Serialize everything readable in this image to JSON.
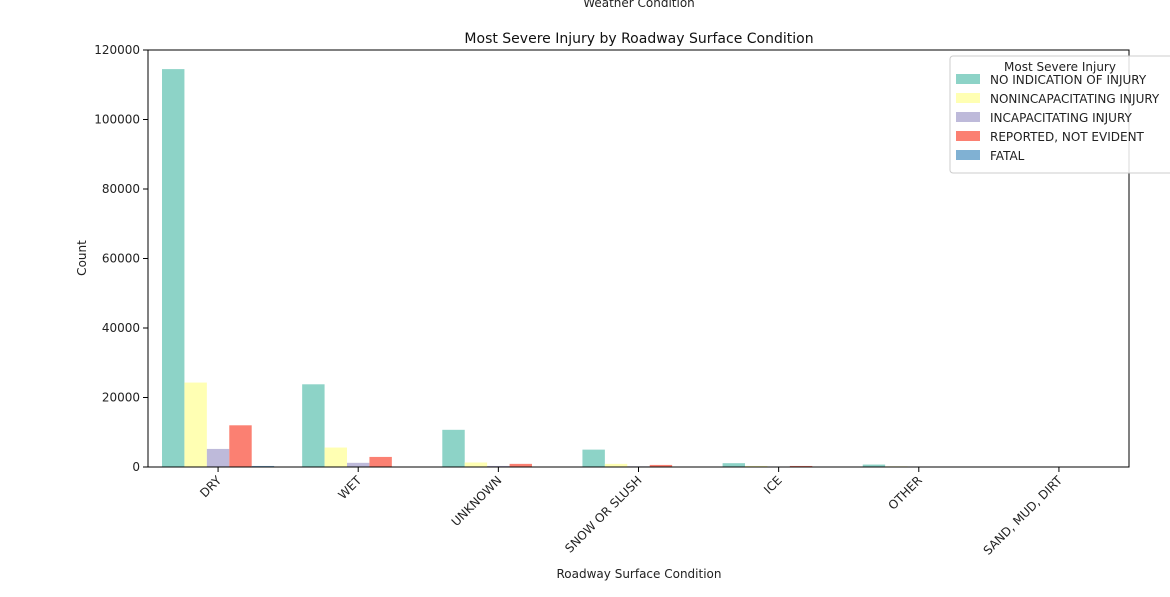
{
  "cropped_top_text": "Weather Condition",
  "chart_data": {
    "type": "bar",
    "title": "Most Severe Injury by Roadway Surface Condition",
    "xlabel": "Roadway Surface Condition",
    "ylabel": "Count",
    "ylim": [
      0,
      120000
    ],
    "yticks": [
      "0",
      "20000",
      "40000",
      "60000",
      "80000",
      "100000",
      "120000"
    ],
    "grid": false,
    "legend": {
      "title": "Most Severe Injury",
      "position": "top-right"
    },
    "categories": [
      "DRY",
      "WET",
      "UNKNOWN",
      "SNOW OR SLUSH",
      "ICE",
      "OTHER",
      "SAND, MUD, DIRT"
    ],
    "series": [
      {
        "name": "NO INDICATION OF INJURY",
        "color": "#8dd3c7",
        "values": [
          114500,
          23800,
          10700,
          5000,
          1100,
          700,
          100
        ]
      },
      {
        "name": "NONINCAPACITATING INJURY",
        "color": "#ffffb3",
        "values": [
          24300,
          5600,
          1300,
          900,
          300,
          200,
          20
        ]
      },
      {
        "name": "INCAPACITATING INJURY",
        "color": "#bebada",
        "values": [
          5200,
          1200,
          300,
          200,
          80,
          50,
          10
        ]
      },
      {
        "name": "REPORTED, NOT EVIDENT",
        "color": "#fb8072",
        "values": [
          12000,
          2900,
          900,
          600,
          300,
          100,
          20
        ]
      },
      {
        "name": "FATAL",
        "color": "#80b1d3",
        "values": [
          300,
          100,
          30,
          20,
          10,
          5,
          2
        ]
      }
    ]
  }
}
